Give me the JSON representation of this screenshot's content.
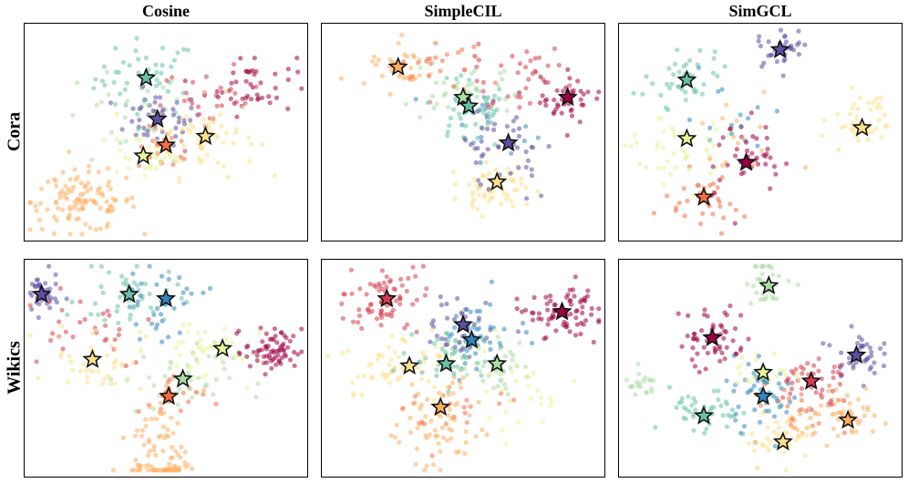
{
  "col_titles": [
    "Cosine",
    "SimpleCIL",
    "SimGCL"
  ],
  "row_titles": [
    "Cora",
    "Wikics"
  ],
  "palette": [
    "#5e4fa2",
    "#3288bd",
    "#66c2a5",
    "#abdda4",
    "#e6f598",
    "#fee08b",
    "#fdae61",
    "#f46d43",
    "#d53e4f",
    "#9e0142"
  ],
  "chart_data": [
    {
      "type": "scatter",
      "title": "Cosine",
      "row": "Cora",
      "dataset": "Cora",
      "method": "Cosine",
      "xlim": [
        0,
        100
      ],
      "ylim": [
        0,
        100
      ],
      "clusters": [
        {
          "color": "#66c2a5",
          "center": [
            43,
            75
          ],
          "spread": [
            9,
            9
          ],
          "n": 45,
          "star": [
            43,
            75
          ]
        },
        {
          "color": "#5e4fa2",
          "center": [
            47,
            56
          ],
          "spread": [
            8,
            6
          ],
          "n": 45,
          "star": [
            47,
            56
          ]
        },
        {
          "color": "#f46d43",
          "center": [
            50,
            42
          ],
          "spread": [
            5,
            5
          ],
          "n": 20,
          "star": [
            50,
            44
          ]
        },
        {
          "color": "#e6f598",
          "center": [
            42,
            40
          ],
          "spread": [
            6,
            6
          ],
          "n": 35,
          "star": [
            42,
            39
          ]
        },
        {
          "color": "#fee08b",
          "center": [
            64,
            48
          ],
          "spread": [
            9,
            9
          ],
          "n": 65,
          "star": [
            64,
            48
          ]
        },
        {
          "color": "#9e0142",
          "center": [
            80,
            72
          ],
          "spread": [
            8,
            7
          ],
          "n": 45,
          "star": null
        },
        {
          "color": "#d53e4f",
          "center": [
            66,
            65
          ],
          "spread": [
            9,
            7
          ],
          "n": 25,
          "star": null
        },
        {
          "color": "#fdae61",
          "center": [
            20,
            18
          ],
          "spread": [
            10,
            7
          ],
          "n": 110,
          "star": null
        },
        {
          "color": "#abdda4",
          "center": [
            35,
            55
          ],
          "spread": [
            12,
            12
          ],
          "n": 25,
          "star": null
        }
      ]
    },
    {
      "type": "scatter",
      "title": "SimpleCIL",
      "row": "Cora",
      "dataset": "Cora",
      "method": "SimpleCIL",
      "xlim": [
        0,
        100
      ],
      "ylim": [
        0,
        100
      ],
      "clusters": [
        {
          "color": "#fdae61",
          "center": [
            27,
            79
          ],
          "spread": [
            5,
            5
          ],
          "n": 35,
          "star": [
            27,
            80
          ]
        },
        {
          "color": "#abdda4",
          "center": [
            50,
            68
          ],
          "spread": [
            9,
            7
          ],
          "n": 40,
          "star": [
            50,
            66
          ]
        },
        {
          "color": "#66c2a5",
          "center": [
            52,
            61
          ],
          "spread": [
            8,
            8
          ],
          "n": 45,
          "star": [
            52,
            62
          ]
        },
        {
          "color": "#9e0142",
          "center": [
            87,
            66
          ],
          "spread": [
            6,
            6
          ],
          "n": 45,
          "star": [
            87,
            66
          ]
        },
        {
          "color": "#5e4fa2",
          "center": [
            66,
            43
          ],
          "spread": [
            8,
            9
          ],
          "n": 45,
          "star": [
            66,
            45
          ]
        },
        {
          "color": "#fee08b",
          "center": [
            60,
            22
          ],
          "spread": [
            7,
            6
          ],
          "n": 60,
          "star": [
            62,
            27
          ]
        },
        {
          "color": "#d53e4f",
          "center": [
            70,
            75
          ],
          "spread": [
            10,
            7
          ],
          "n": 35,
          "star": null
        },
        {
          "color": "#3288bd",
          "center": [
            60,
            52
          ],
          "spread": [
            12,
            10
          ],
          "n": 15,
          "star": null
        },
        {
          "color": "#f46d43",
          "center": [
            40,
            80
          ],
          "spread": [
            10,
            8
          ],
          "n": 25,
          "star": null
        }
      ]
    },
    {
      "type": "scatter",
      "title": "SimGCL",
      "row": "Cora",
      "dataset": "Cora",
      "method": "SimGCL",
      "xlim": [
        0,
        100
      ],
      "ylim": [
        0,
        100
      ],
      "clusters": [
        {
          "color": "#5e4fa2",
          "center": [
            57,
            88
          ],
          "spread": [
            4,
            4
          ],
          "n": 40,
          "star": [
            57,
            88
          ]
        },
        {
          "color": "#66c2a5",
          "center": [
            24,
            74
          ],
          "spread": [
            6,
            8
          ],
          "n": 40,
          "star": [
            24,
            74
          ]
        },
        {
          "color": "#e6f598",
          "center": [
            20,
            46
          ],
          "spread": [
            9,
            9
          ],
          "n": 45,
          "star": [
            24,
            47
          ]
        },
        {
          "color": "#9e0142",
          "center": [
            46,
            38
          ],
          "spread": [
            6,
            8
          ],
          "n": 40,
          "star": [
            45,
            36
          ]
        },
        {
          "color": "#f46d43",
          "center": [
            30,
            20
          ],
          "spread": [
            6,
            7
          ],
          "n": 35,
          "star": [
            30,
            20
          ]
        },
        {
          "color": "#fee08b",
          "center": [
            86,
            54
          ],
          "spread": [
            6,
            6
          ],
          "n": 45,
          "star": [
            86,
            52
          ]
        },
        {
          "color": "#3288bd",
          "center": [
            38,
            58
          ],
          "spread": [
            8,
            8
          ],
          "n": 15,
          "star": null
        },
        {
          "color": "#fdae61",
          "center": [
            40,
            45
          ],
          "spread": [
            10,
            10
          ],
          "n": 15,
          "star": null
        }
      ]
    },
    {
      "type": "scatter",
      "title": "",
      "row": "Wikics",
      "dataset": "Wikics",
      "method": "Cosine",
      "xlim": [
        0,
        100
      ],
      "ylim": [
        0,
        100
      ],
      "clusters": [
        {
          "color": "#5e4fa2",
          "center": [
            6,
            84
          ],
          "spread": [
            3,
            5
          ],
          "n": 40,
          "star": [
            6,
            84
          ]
        },
        {
          "color": "#66c2a5",
          "center": [
            37,
            82
          ],
          "spread": [
            9,
            8
          ],
          "n": 45,
          "star": [
            37,
            84
          ]
        },
        {
          "color": "#3288bd",
          "center": [
            48,
            80
          ],
          "spread": [
            8,
            8
          ],
          "n": 35,
          "star": [
            50,
            82
          ]
        },
        {
          "color": "#fee08b",
          "center": [
            26,
            55
          ],
          "spread": [
            8,
            8
          ],
          "n": 40,
          "star": [
            24,
            54
          ]
        },
        {
          "color": "#e6f598",
          "center": [
            62,
            58
          ],
          "spread": [
            10,
            8
          ],
          "n": 40,
          "star": [
            70,
            59
          ]
        },
        {
          "color": "#abdda4",
          "center": [
            54,
            45
          ],
          "spread": [
            10,
            8
          ],
          "n": 40,
          "star": [
            56,
            45
          ]
        },
        {
          "color": "#f46d43",
          "center": [
            52,
            36
          ],
          "spread": [
            6,
            6
          ],
          "n": 20,
          "star": [
            51,
            37
          ]
        },
        {
          "color": "#9e0142",
          "center": [
            88,
            58
          ],
          "spread": [
            5,
            5
          ],
          "n": 70,
          "star": null
        },
        {
          "color": "#fdae61",
          "center": [
            48,
            10
          ],
          "spread": [
            5,
            15
          ],
          "n": 90,
          "star": null
        },
        {
          "color": "#d53e4f",
          "center": [
            20,
            70
          ],
          "spread": [
            14,
            10
          ],
          "n": 30,
          "star": null
        }
      ]
    },
    {
      "type": "scatter",
      "title": "",
      "row": "Wikics",
      "dataset": "Wikics",
      "method": "SimpleCIL",
      "xlim": [
        0,
        100
      ],
      "ylim": [
        0,
        100
      ],
      "clusters": [
        {
          "color": "#d53e4f",
          "center": [
            22,
            82
          ],
          "spread": [
            10,
            8
          ],
          "n": 75,
          "star": [
            23,
            82
          ]
        },
        {
          "color": "#9e0142",
          "center": [
            85,
            76
          ],
          "spread": [
            6,
            7
          ],
          "n": 75,
          "star": [
            85,
            76
          ]
        },
        {
          "color": "#5e4fa2",
          "center": [
            50,
            70
          ],
          "spread": [
            8,
            7
          ],
          "n": 35,
          "star": [
            50,
            70
          ]
        },
        {
          "color": "#3288bd",
          "center": [
            54,
            63
          ],
          "spread": [
            7,
            7
          ],
          "n": 40,
          "star": [
            53,
            63
          ]
        },
        {
          "color": "#66c2a5",
          "center": [
            44,
            56
          ],
          "spread": [
            7,
            6
          ],
          "n": 40,
          "star": [
            44,
            52
          ]
        },
        {
          "color": "#fee08b",
          "center": [
            29,
            52
          ],
          "spread": [
            10,
            8
          ],
          "n": 60,
          "star": [
            31,
            51
          ]
        },
        {
          "color": "#abdda4",
          "center": [
            62,
            50
          ],
          "spread": [
            7,
            7
          ],
          "n": 40,
          "star": [
            62,
            52
          ]
        },
        {
          "color": "#fdae61",
          "center": [
            42,
            25
          ],
          "spread": [
            8,
            12
          ],
          "n": 65,
          "star": [
            42,
            32
          ]
        },
        {
          "color": "#f46d43",
          "center": [
            48,
            30
          ],
          "spread": [
            8,
            6
          ],
          "n": 20,
          "star": null
        },
        {
          "color": "#e6f598",
          "center": [
            70,
            40
          ],
          "spread": [
            10,
            12
          ],
          "n": 30,
          "star": null
        }
      ]
    },
    {
      "type": "scatter",
      "title": "",
      "row": "Wikics",
      "dataset": "Wikics",
      "method": "SimGCL",
      "xlim": [
        0,
        100
      ],
      "ylim": [
        0,
        100
      ],
      "clusters": [
        {
          "color": "#abdda4",
          "center": [
            53,
            90
          ],
          "spread": [
            4,
            6
          ],
          "n": 35,
          "star": [
            53,
            88
          ]
        },
        {
          "color": "#9e0142",
          "center": [
            33,
            64
          ],
          "spread": [
            6,
            8
          ],
          "n": 55,
          "star": [
            33,
            64
          ]
        },
        {
          "color": "#5e4fa2",
          "center": [
            84,
            57
          ],
          "spread": [
            4,
            5
          ],
          "n": 40,
          "star": [
            84,
            56
          ]
        },
        {
          "color": "#d53e4f",
          "center": [
            68,
            44
          ],
          "spread": [
            7,
            7
          ],
          "n": 45,
          "star": [
            68,
            44
          ]
        },
        {
          "color": "#e6f598",
          "center": [
            51,
            48
          ],
          "spread": [
            5,
            5
          ],
          "n": 25,
          "star": [
            51,
            48
          ]
        },
        {
          "color": "#3288bd",
          "center": [
            51,
            39
          ],
          "spread": [
            7,
            8
          ],
          "n": 45,
          "star": [
            51,
            37
          ]
        },
        {
          "color": "#66c2a5",
          "center": [
            30,
            28
          ],
          "spread": [
            6,
            6
          ],
          "n": 45,
          "star": [
            30,
            28
          ]
        },
        {
          "color": "#fee08b",
          "center": [
            57,
            18
          ],
          "spread": [
            6,
            6
          ],
          "n": 40,
          "star": [
            58,
            16
          ]
        },
        {
          "color": "#fdae61",
          "center": [
            80,
            27
          ],
          "spread": [
            9,
            5
          ],
          "n": 55,
          "star": [
            81,
            26
          ]
        },
        {
          "color": "#f46d43",
          "center": [
            65,
            30
          ],
          "spread": [
            10,
            8
          ],
          "n": 20,
          "star": null
        },
        {
          "color": "#abdda4",
          "center": [
            8,
            42
          ],
          "spread": [
            3,
            3
          ],
          "n": 20,
          "star": null
        }
      ]
    }
  ]
}
